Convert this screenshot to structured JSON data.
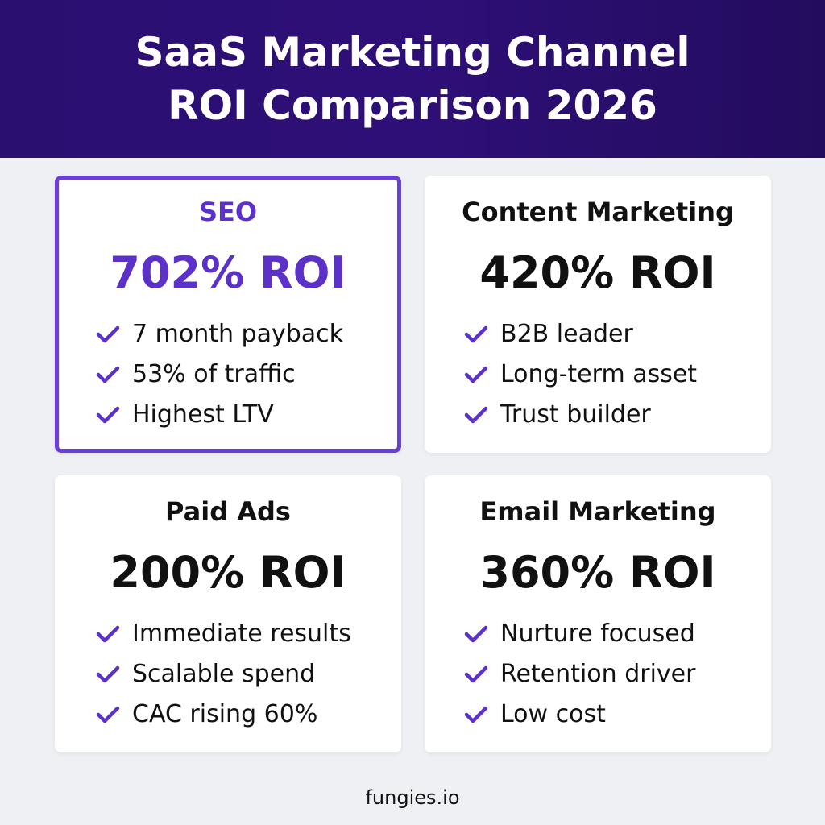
{
  "header": {
    "title": "SaaS Marketing Channel ROI Comparison 2026"
  },
  "cards": [
    {
      "name": "SEO",
      "roi": "702% ROI",
      "points": [
        "7 month payback",
        "53% of traffic",
        "Highest LTV"
      ]
    },
    {
      "name": "Content Marketing",
      "roi": "420% ROI",
      "points": [
        "B2B leader",
        "Long-term asset",
        "Trust builder"
      ]
    },
    {
      "name": "Paid Ads",
      "roi": "200% ROI",
      "points": [
        "Immediate results",
        "Scalable spend",
        "CAC rising 60%"
      ]
    },
    {
      "name": "Email Marketing",
      "roi": "360% ROI",
      "points": [
        "Nurture focused",
        "Retention driver",
        "Low cost"
      ]
    }
  ],
  "footer": {
    "text": "fungies.io"
  }
}
